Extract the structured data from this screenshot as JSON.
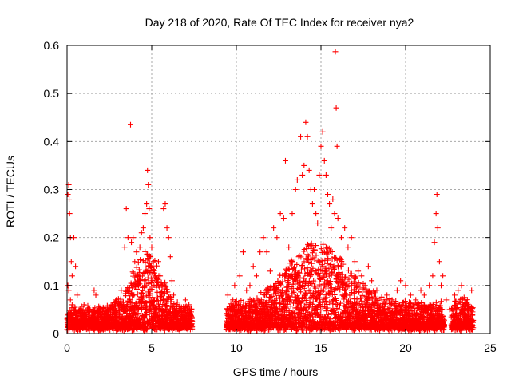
{
  "chart_data": {
    "type": "scatter",
    "title": "Day 218 of 2020, Rate Of TEC Index for receiver nya2",
    "xlabel": "GPS time / hours",
    "ylabel": "ROTI / TECUs",
    "xlim": [
      0,
      25
    ],
    "ylim": [
      0,
      0.6
    ],
    "xticks": [
      0,
      5,
      10,
      15,
      20,
      25
    ],
    "yticks": [
      0,
      0.1,
      0.2,
      0.3,
      0.4,
      0.5,
      0.6
    ],
    "xtick_labels": [
      "0",
      "5",
      "10",
      "15",
      "20",
      "25"
    ],
    "ytick_labels": [
      "0",
      "0.1",
      "0.2",
      "0.3",
      "0.4",
      "0.5",
      "0.6"
    ],
    "grid": true,
    "marker": "plus",
    "color": "#ff0000",
    "series": [
      {
        "points": [
          [
            0.05,
            0.29
          ],
          [
            0.1,
            0.31
          ],
          [
            0.12,
            0.28
          ],
          [
            0.15,
            0.25
          ],
          [
            0.2,
            0.2
          ],
          [
            0.25,
            0.15
          ],
          [
            0.3,
            0.12
          ],
          [
            0.4,
            0.2
          ],
          [
            0.5,
            0.14
          ],
          [
            0.6,
            0.08
          ],
          [
            0.05,
            0.1
          ],
          [
            0.1,
            0.09
          ],
          [
            0.2,
            0.07
          ],
          [
            0.3,
            0.06
          ],
          [
            0.8,
            0.05
          ],
          [
            1.0,
            0.06
          ],
          [
            1.3,
            0.05
          ],
          [
            1.6,
            0.09
          ],
          [
            1.7,
            0.08
          ],
          [
            2.0,
            0.04
          ],
          [
            2.3,
            0.05
          ],
          [
            2.6,
            0.06
          ],
          [
            2.9,
            0.07
          ],
          [
            3.2,
            0.09
          ],
          [
            3.4,
            0.18
          ],
          [
            3.5,
            0.26
          ],
          [
            3.6,
            0.2
          ],
          [
            3.75,
            0.435
          ],
          [
            3.8,
            0.19
          ],
          [
            3.9,
            0.2
          ],
          [
            4.0,
            0.15
          ],
          [
            4.1,
            0.17
          ],
          [
            4.2,
            0.12
          ],
          [
            4.3,
            0.18
          ],
          [
            4.4,
            0.21
          ],
          [
            4.5,
            0.22
          ],
          [
            4.6,
            0.25
          ],
          [
            4.7,
            0.27
          ],
          [
            4.75,
            0.34
          ],
          [
            4.8,
            0.31
          ],
          [
            4.85,
            0.26
          ],
          [
            4.9,
            0.2
          ],
          [
            5.0,
            0.18
          ],
          [
            5.1,
            0.15
          ],
          [
            5.2,
            0.12
          ],
          [
            5.3,
            0.1
          ],
          [
            5.4,
            0.15
          ],
          [
            5.5,
            0.12
          ],
          [
            5.6,
            0.08
          ],
          [
            5.7,
            0.26
          ],
          [
            5.8,
            0.27
          ],
          [
            5.9,
            0.22
          ],
          [
            6.0,
            0.2
          ],
          [
            6.1,
            0.16
          ],
          [
            6.2,
            0.11
          ],
          [
            6.3,
            0.08
          ],
          [
            6.5,
            0.06
          ],
          [
            6.7,
            0.05
          ],
          [
            7.0,
            0.07
          ],
          [
            7.2,
            0.06
          ],
          [
            9.5,
            0.08
          ],
          [
            9.7,
            0.05
          ],
          [
            9.9,
            0.1
          ],
          [
            10.2,
            0.12
          ],
          [
            10.4,
            0.17
          ],
          [
            10.6,
            0.09
          ],
          [
            10.8,
            0.1
          ],
          [
            11.0,
            0.14
          ],
          [
            11.2,
            0.12
          ],
          [
            11.4,
            0.17
          ],
          [
            11.6,
            0.2
          ],
          [
            11.8,
            0.17
          ],
          [
            12.0,
            0.13
          ],
          [
            12.2,
            0.22
          ],
          [
            12.4,
            0.2
          ],
          [
            12.6,
            0.25
          ],
          [
            12.8,
            0.24
          ],
          [
            12.9,
            0.36
          ],
          [
            13.1,
            0.18
          ],
          [
            13.3,
            0.25
          ],
          [
            13.5,
            0.3
          ],
          [
            13.6,
            0.32
          ],
          [
            13.8,
            0.41
          ],
          [
            13.9,
            0.33
          ],
          [
            14.0,
            0.35
          ],
          [
            14.1,
            0.44
          ],
          [
            14.2,
            0.41
          ],
          [
            14.3,
            0.34
          ],
          [
            14.4,
            0.3
          ],
          [
            14.5,
            0.27
          ],
          [
            14.6,
            0.3
          ],
          [
            14.7,
            0.25
          ],
          [
            14.8,
            0.23
          ],
          [
            14.9,
            0.33
          ],
          [
            15.0,
            0.39
          ],
          [
            15.1,
            0.42
          ],
          [
            15.2,
            0.36
          ],
          [
            15.3,
            0.33
          ],
          [
            15.4,
            0.29
          ],
          [
            15.5,
            0.27
          ],
          [
            15.6,
            0.22
          ],
          [
            15.7,
            0.28
          ],
          [
            15.8,
            0.25
          ],
          [
            15.85,
            0.587
          ],
          [
            15.9,
            0.47
          ],
          [
            15.95,
            0.39
          ],
          [
            16.0,
            0.24
          ],
          [
            16.2,
            0.2
          ],
          [
            16.4,
            0.22
          ],
          [
            16.6,
            0.18
          ],
          [
            16.8,
            0.2
          ],
          [
            17.0,
            0.15
          ],
          [
            17.2,
            0.13
          ],
          [
            17.4,
            0.12
          ],
          [
            17.6,
            0.1
          ],
          [
            17.8,
            0.14
          ],
          [
            18.0,
            0.11
          ],
          [
            18.3,
            0.09
          ],
          [
            18.6,
            0.07
          ],
          [
            18.9,
            0.08
          ],
          [
            19.2,
            0.07
          ],
          [
            19.5,
            0.09
          ],
          [
            19.7,
            0.11
          ],
          [
            20.0,
            0.1
          ],
          [
            20.3,
            0.08
          ],
          [
            20.6,
            0.07
          ],
          [
            20.9,
            0.09
          ],
          [
            21.1,
            0.08
          ],
          [
            21.4,
            0.1
          ],
          [
            21.6,
            0.12
          ],
          [
            21.7,
            0.19
          ],
          [
            21.8,
            0.25
          ],
          [
            21.85,
            0.29
          ],
          [
            21.9,
            0.22
          ],
          [
            22.0,
            0.15
          ],
          [
            22.1,
            0.1
          ],
          [
            22.2,
            0.12
          ],
          [
            22.4,
            0.07
          ],
          [
            22.6,
            0.05
          ],
          [
            22.9,
            0.08
          ],
          [
            23.1,
            0.09
          ],
          [
            23.3,
            0.1
          ],
          [
            23.5,
            0.07
          ],
          [
            23.7,
            0.05
          ],
          [
            23.9,
            0.09
          ]
        ]
      }
    ],
    "density": [
      {
        "start": 0.0,
        "end": 7.4,
        "base": 0.02,
        "amp": 0.04,
        "peak_center": 4.7,
        "peak_amp": 0.09,
        "peak_width": 1.2
      },
      {
        "start": 9.4,
        "end": 22.3,
        "base": 0.02,
        "amp": 0.05,
        "peak_center": 14.8,
        "peak_amp": 0.1,
        "peak_width": 2.5
      },
      {
        "start": 22.7,
        "end": 24.0,
        "base": 0.02,
        "amp": 0.04,
        "peak_center": 23.3,
        "peak_amp": 0.02,
        "peak_width": 0.5
      }
    ]
  }
}
